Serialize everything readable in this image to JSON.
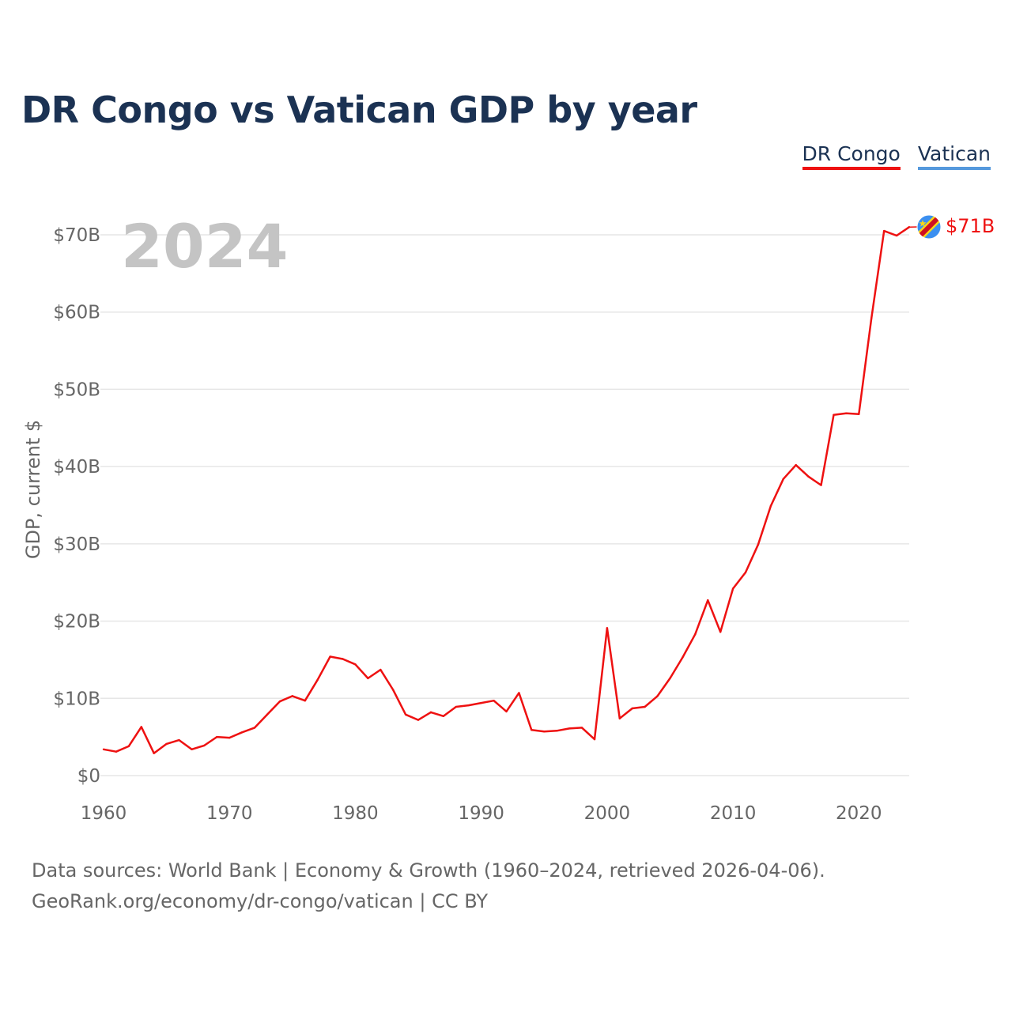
{
  "colors": {
    "dr_congo": "#ee1111",
    "vatican": "#5599dd",
    "title": "#1b3253",
    "grid": "#e6e6e6"
  },
  "legend": [
    {
      "label": "DR Congo",
      "color": "#ee1111"
    },
    {
      "label": "Vatican",
      "color": "#5599dd"
    }
  ],
  "flag_icon": "dr-congo-flag-icon",
  "footer": {
    "line1": "Data sources: World Bank | Economy & Growth (1960–2024, retrieved 2026-04-06).",
    "line2": "GeoRank.org/economy/dr-congo/vatican | CC BY"
  },
  "chart_data": {
    "type": "line",
    "title": "DR Congo vs Vatican GDP by year",
    "year_watermark": "2024",
    "xlabel": "",
    "ylabel": "GDP, current $",
    "xlim": [
      1960,
      2024
    ],
    "ylim": [
      0,
      70
    ],
    "x_ticks": [
      1960,
      1970,
      1980,
      1990,
      2000,
      2010,
      2020
    ],
    "y_ticks": [
      0,
      10,
      20,
      30,
      40,
      50,
      60,
      70
    ],
    "y_tick_labels": [
      "$0",
      "$10B",
      "$20B",
      "$30B",
      "$40B",
      "$50B",
      "$60B",
      "$70B"
    ],
    "end_label": "$71B",
    "series": [
      {
        "name": "DR Congo",
        "units": "billions USD",
        "x": [
          1960,
          1961,
          1962,
          1963,
          1964,
          1965,
          1966,
          1967,
          1968,
          1969,
          1970,
          1971,
          1972,
          1973,
          1974,
          1975,
          1976,
          1977,
          1978,
          1979,
          1980,
          1981,
          1982,
          1983,
          1984,
          1985,
          1986,
          1987,
          1988,
          1989,
          1990,
          1991,
          1992,
          1993,
          1994,
          1995,
          1996,
          1997,
          1998,
          1999,
          2000,
          2001,
          2002,
          2003,
          2004,
          2005,
          2006,
          2007,
          2008,
          2009,
          2010,
          2011,
          2012,
          2013,
          2014,
          2015,
          2016,
          2017,
          2018,
          2019,
          2020,
          2021,
          2022,
          2023,
          2024
        ],
        "values": [
          3.4,
          3.1,
          3.8,
          6.3,
          2.9,
          4.1,
          4.6,
          3.4,
          3.9,
          5.0,
          4.9,
          5.6,
          6.2,
          7.9,
          9.6,
          10.3,
          9.7,
          12.4,
          15.4,
          15.1,
          14.4,
          12.6,
          13.7,
          11.1,
          7.9,
          7.2,
          8.2,
          7.7,
          8.9,
          9.1,
          9.4,
          9.7,
          8.3,
          10.7,
          5.9,
          5.7,
          5.8,
          6.1,
          6.2,
          4.7,
          19.1,
          7.4,
          8.7,
          8.9,
          10.3,
          12.6,
          15.3,
          18.3,
          22.7,
          18.6,
          24.2,
          26.3,
          29.9,
          34.9,
          38.4,
          40.2,
          38.7,
          37.6,
          46.7,
          46.9,
          46.8,
          59.2,
          70.5,
          69.9,
          71.0
        ]
      }
    ]
  }
}
